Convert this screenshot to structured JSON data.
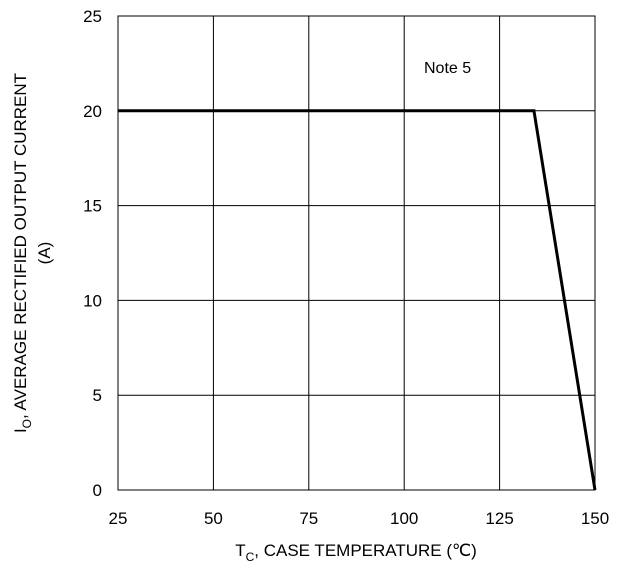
{
  "chart_data": {
    "type": "line",
    "xlabel_main": "T",
    "xlabel_sub": "C",
    "xlabel_rest": ", CASE TEMPERATURE (℃)",
    "ylabel_main": "I",
    "ylabel_sub": "O",
    "ylabel_rest": ", AVERAGE RECTIFIED OUTPUT CURRENT",
    "ylabel_unit": "(A)",
    "xlim": [
      25,
      150
    ],
    "ylim": [
      0,
      25
    ],
    "xticks": [
      25,
      50,
      75,
      100,
      125,
      150
    ],
    "yticks": [
      0,
      5,
      10,
      15,
      20,
      25
    ],
    "grid": true,
    "series": [
      {
        "x": [
          25,
          134,
          150
        ],
        "y": [
          20,
          20,
          0
        ]
      }
    ],
    "annotation": "Note 5"
  }
}
